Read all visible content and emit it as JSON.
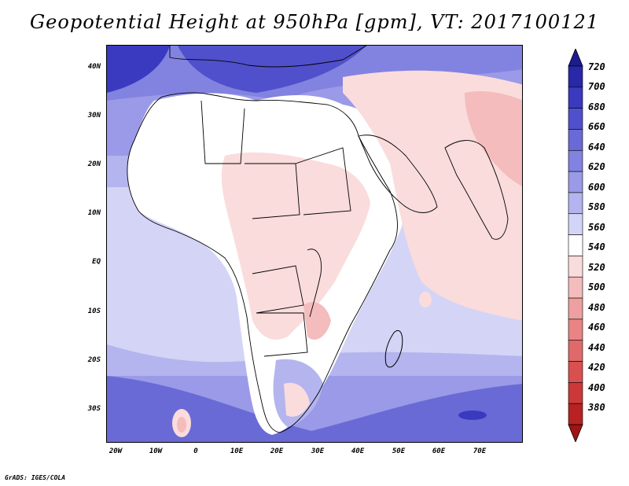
{
  "title": "Geopotential Height at 950hPa [gpm], VT: 2017100121",
  "credit": "GrADS: IGES/COLA",
  "map": {
    "latitude_labels": [
      "40N",
      "30N",
      "20N",
      "10N",
      "EQ",
      "10S",
      "20S",
      "30S"
    ],
    "longitude_labels": [
      "20W",
      "10W",
      "0",
      "10E",
      "20E",
      "30E",
      "40E",
      "50E",
      "60E",
      "70E"
    ]
  },
  "colorbar": {
    "labels": [
      "720",
      "700",
      "680",
      "660",
      "640",
      "620",
      "600",
      "580",
      "560",
      "540",
      "520",
      "500",
      "480",
      "460",
      "440",
      "420",
      "400",
      "380"
    ],
    "colors": [
      "#1c1c90",
      "#2828a8",
      "#3a3ac0",
      "#5050cc",
      "#6a6ad6",
      "#8282e0",
      "#9a9ae8",
      "#b4b4ee",
      "#d4d4f6",
      "#ffffff",
      "#fadcdc",
      "#f4bcbc",
      "#eea0a0",
      "#e88484",
      "#e06a6a",
      "#d85050",
      "#cc3838",
      "#b82222",
      "#a01414"
    ]
  },
  "colors": {
    "land_low": "#fadcdc",
    "land_mid": "#ffffff",
    "ocean_south": "#8282e0",
    "ocean_mid": "#d4d4f6",
    "north": "#6a6ad6"
  }
}
